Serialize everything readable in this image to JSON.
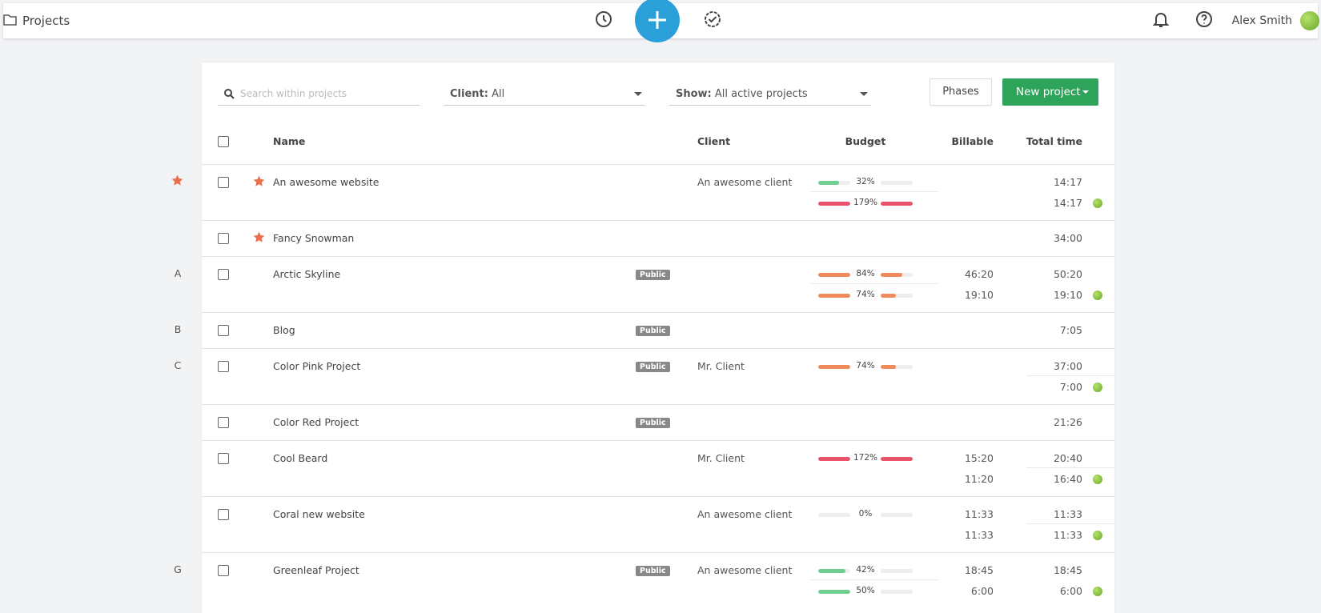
{
  "header": {
    "title": "Projects",
    "user": "Alex Smith"
  },
  "toolbar": {
    "search_placeholder": "Search within projects",
    "client_label": "Client:",
    "client_value": "All",
    "show_label": "Show:",
    "show_value": "All active projects",
    "phases": "Phases",
    "new_project": "New project"
  },
  "columns": {
    "name": "Name",
    "client": "Client",
    "budget": "Budget",
    "billable": "Billable",
    "total": "Total time"
  },
  "rows": [
    {
      "group_star": true,
      "starred": true,
      "name": "An awesome website",
      "client": "An awesome client",
      "lines": [
        {
          "budget": {
            "value": 32,
            "label": "32%"
          },
          "color": "#6fcf8f",
          "total": "14:17"
        },
        {
          "budget": {
            "value": 179,
            "label": "179%"
          },
          "color": "#e8536b",
          "total": "14:17",
          "dot": true
        }
      ]
    },
    {
      "starred": true,
      "name": "Fancy Snowman",
      "lines": [
        {
          "total": "34:00"
        }
      ]
    },
    {
      "letter": "A",
      "name": "Arctic Skyline",
      "badge": "Public",
      "lines": [
        {
          "budget": {
            "value": 84,
            "label": "84%"
          },
          "color": "#ef8a5b",
          "billable": "46:20",
          "total": "50:20"
        },
        {
          "budget": {
            "value": 74,
            "label": "74%"
          },
          "color": "#ef8a5b",
          "billable": "19:10",
          "total": "19:10",
          "dot": true
        }
      ]
    },
    {
      "letter": "B",
      "name": "Blog",
      "badge": "Public",
      "lines": [
        {
          "total": "7:05"
        }
      ]
    },
    {
      "letter": "C",
      "name": "Color Pink Project",
      "badge": "Public",
      "client": "Mr. Client",
      "lines": [
        {
          "budget": {
            "value": 74,
            "label": "74%"
          },
          "color": "#ef8a5b",
          "total": "37:00"
        },
        {
          "total": "7:00",
          "dot": true
        }
      ]
    },
    {
      "name": "Color Red Project",
      "badge": "Public",
      "lines": [
        {
          "total": "21:26"
        }
      ]
    },
    {
      "name": "Cool Beard",
      "client": "Mr. Client",
      "lines": [
        {
          "budget": {
            "value": 172,
            "label": "172%"
          },
          "color": "#e8536b",
          "billable": "15:20",
          "total": "20:40"
        },
        {
          "billable": "11:20",
          "total": "16:40",
          "dot": true
        }
      ]
    },
    {
      "name": "Coral new website",
      "client": "An awesome client",
      "lines": [
        {
          "budget": {
            "value": 0,
            "label": "0%"
          },
          "color": "#6fcf8f",
          "billable": "11:33",
          "total": "11:33"
        },
        {
          "billable": "11:33",
          "total": "11:33",
          "dot": true
        }
      ]
    },
    {
      "letter": "G",
      "name": "Greenleaf Project",
      "badge": "Public",
      "client": "An awesome client",
      "lines": [
        {
          "budget": {
            "value": 42,
            "label": "42%"
          },
          "color": "#6fcf8f",
          "billable": "18:45",
          "total": "18:45"
        },
        {
          "budget": {
            "value": 50,
            "label": "50%"
          },
          "color": "#6fcf8f",
          "billable": "6:00",
          "total": "6:00",
          "dot": true
        }
      ]
    }
  ]
}
